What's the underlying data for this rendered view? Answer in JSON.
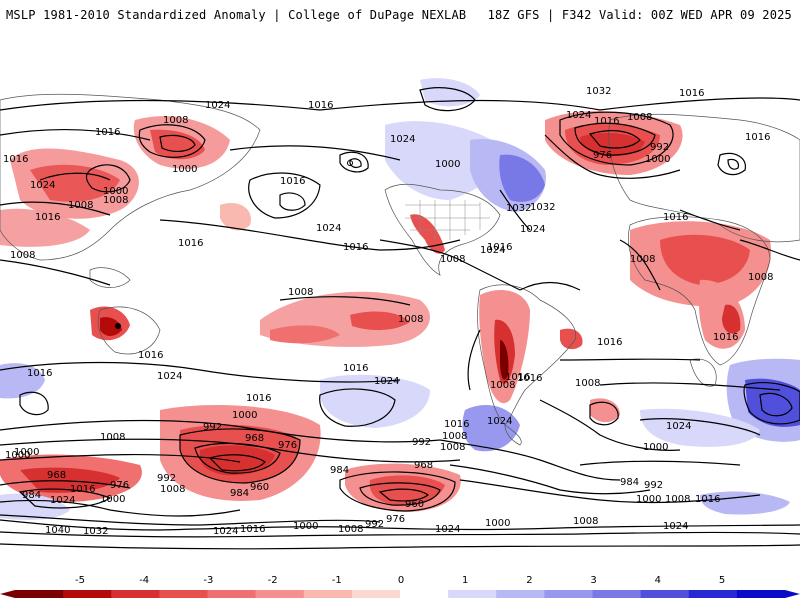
{
  "header": {
    "title_left": "MSLP 1981-2010 Standardized Anomaly | College of DuPage NEXLAB",
    "title_right": "18Z GFS | F342 Valid: 00Z WED APR 09 2025"
  },
  "colorbar": {
    "ticks": [
      {
        "label": "-5"
      },
      {
        "label": "-4"
      },
      {
        "label": "-3"
      },
      {
        "label": "-2"
      },
      {
        "label": "-1"
      },
      {
        "label": "0"
      },
      {
        "label": "1"
      },
      {
        "label": "2"
      },
      {
        "label": "3"
      },
      {
        "label": "4"
      },
      {
        "label": "5"
      }
    ],
    "colors": [
      "#7a0000",
      "#b40a0a",
      "#d63030",
      "#e85050",
      "#f07070",
      "#f59090",
      "#f9b8b0",
      "#fcd8d0",
      "#ffffff",
      "#d8d8fa",
      "#b8b8f5",
      "#9898ee",
      "#7878e6",
      "#5050dc",
      "#2828d4",
      "#0a0ac8"
    ]
  },
  "contour_labels": {
    "l1": "1024",
    "l2": "1016",
    "l3": "1016",
    "l4": "1008",
    "l5": "1000",
    "l6": "1016",
    "l7": "1024",
    "l8": "1000",
    "l9": "1008",
    "l10": "1016",
    "l11": "1008",
    "l12": "1016",
    "l13": "1024",
    "l14": "1016",
    "l15": "1016",
    "l16": "1008",
    "l17": "1032",
    "l18": "1024",
    "l19": "1016",
    "l20": "1008",
    "l21": "1032",
    "l22": "1024",
    "l23": "1016",
    "l24": "1008",
    "l25": "992",
    "l26": "976",
    "l27": "1000",
    "l28": "1016",
    "l29": "1016",
    "l30": "1008",
    "l31": "1008",
    "l32": "1008",
    "l33": "1016",
    "l34": "1016",
    "l35": "1016",
    "l36": "1024",
    "l37": "1016",
    "l38": "1024",
    "l39": "1016",
    "l40": "1000",
    "l41": "992",
    "l42": "968",
    "l43": "976",
    "l44": "984",
    "l45": "960",
    "l46": "992",
    "l47": "1008",
    "l48": "976",
    "l49": "968",
    "l50": "984",
    "l51": "1016",
    "l52": "1024",
    "l53": "1000",
    "l54": "1040",
    "l55": "1032",
    "l56": "1024",
    "l57": "1016",
    "l58": "1000",
    "l59": "1008",
    "l60": "992",
    "l61": "968",
    "l62": "960",
    "l63": "984",
    "l64": "976",
    "l65": "1024",
    "l66": "1000",
    "l67": "1016",
    "l68": "1024",
    "l69": "1008",
    "l70": "992",
    "l71": "1008",
    "l72": "1000",
    "l73": "1016",
    "l74": "1008",
    "l75": "1024",
    "l76": "1000",
    "l77": "984",
    "l78": "992",
    "l79": "1000",
    "l80": "1008",
    "l81": "1016",
    "l82": "1024",
    "l83": "1008",
    "l84": "1016",
    "l85": "1008",
    "l86": "1024",
    "l87": "1000",
    "l88": "1008",
    "l89": "1016",
    "l90": "1024",
    "l91": "1008",
    "l92": "1000",
    "l93": "1016",
    "l94": "1032"
  }
}
